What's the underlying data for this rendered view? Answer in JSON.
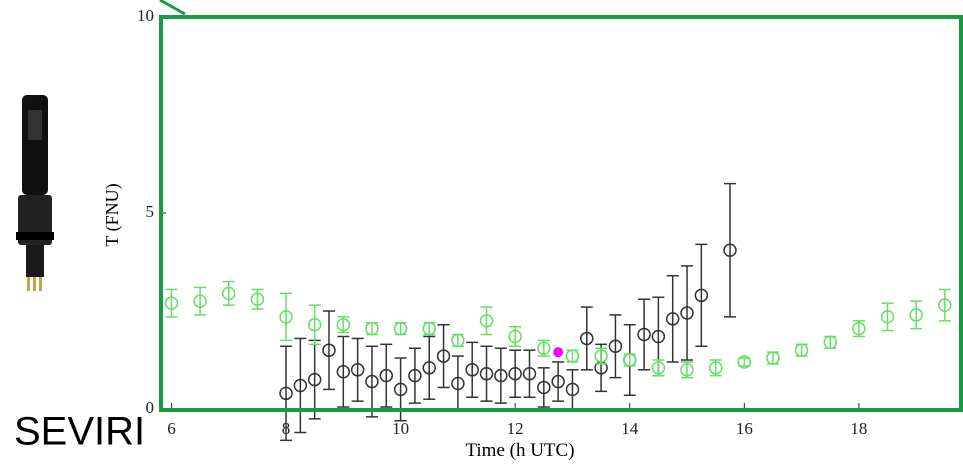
{
  "chart_data": {
    "type": "scatter",
    "xlabel": "Time (h UTC)",
    "ylabel": "T (FNU)",
    "annotation": "SEVIRI",
    "xlim": [
      5.8,
      19.8
    ],
    "ylim": [
      0,
      10
    ],
    "xticks": [
      6,
      8,
      10,
      12,
      14,
      16,
      18
    ],
    "yticks": [
      0,
      5,
      10
    ],
    "series": [
      {
        "color": "#333333",
        "x": [
          8,
          8.25,
          8.5,
          8.75,
          9,
          9.25,
          9.5,
          9.75,
          10,
          10.25,
          10.5,
          10.75,
          11,
          11.25,
          11.5,
          11.75,
          12,
          12.25,
          12.5,
          12.75,
          13,
          13.25,
          13.5,
          13.75,
          14,
          14.25,
          14.5,
          14.75,
          15,
          15.25,
          15.75
        ],
        "values": [
          0.4,
          0.6,
          0.75,
          1.5,
          0.95,
          1.0,
          0.7,
          0.85,
          0.5,
          0.85,
          1.05,
          1.35,
          0.65,
          1.0,
          0.9,
          0.85,
          0.9,
          0.9,
          0.55,
          0.7,
          0.5,
          1.8,
          1.05,
          1.6,
          1.25,
          1.9,
          1.85,
          2.3,
          2.45,
          2.9,
          4.05
        ],
        "errors": [
          1.2,
          1.2,
          1.0,
          1.0,
          0.9,
          0.8,
          0.9,
          0.8,
          0.8,
          0.7,
          0.8,
          0.8,
          0.7,
          0.7,
          0.7,
          0.7,
          0.6,
          0.6,
          0.5,
          0.5,
          0.5,
          0.8,
          0.6,
          0.8,
          0.9,
          0.9,
          1.0,
          1.1,
          1.2,
          1.3,
          1.7
        ]
      },
      {
        "color": "#66dd66",
        "x": [
          6,
          6.5,
          7,
          7.5,
          8,
          8.5,
          9,
          9.5,
          10,
          10.5,
          11,
          11.5,
          12,
          12.5,
          13,
          13.5,
          14,
          14.5,
          15,
          15.5,
          16,
          16.5,
          17,
          17.5,
          18,
          18.5,
          19,
          19.5
        ],
        "values": [
          2.7,
          2.75,
          2.95,
          2.8,
          2.35,
          2.15,
          2.15,
          2.05,
          2.05,
          2.05,
          1.75,
          2.25,
          1.85,
          1.55,
          1.35,
          1.35,
          1.25,
          1.05,
          1.0,
          1.05,
          1.2,
          1.3,
          1.5,
          1.7,
          2.05,
          2.35,
          2.4,
          2.65
        ],
        "errors": [
          0.35,
          0.35,
          0.3,
          0.25,
          0.6,
          0.5,
          0.2,
          0.15,
          0.15,
          0.15,
          0.15,
          0.35,
          0.25,
          0.2,
          0.15,
          0.2,
          0.15,
          0.2,
          0.2,
          0.2,
          0.1,
          0.15,
          0.15,
          0.15,
          0.2,
          0.35,
          0.35,
          0.4
        ]
      },
      {
        "color": "#ff00ff",
        "x": [
          12.75
        ],
        "values": [
          1.45
        ]
      }
    ]
  }
}
